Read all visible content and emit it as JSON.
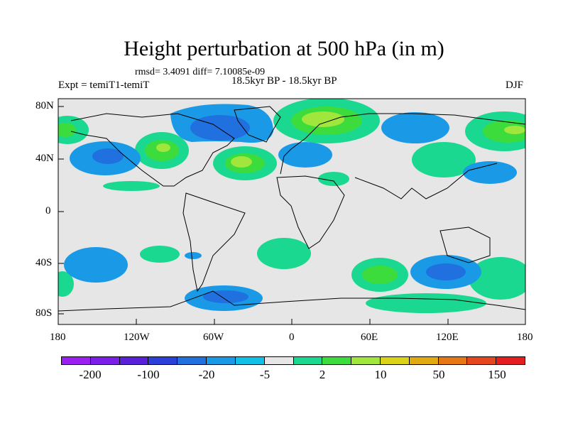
{
  "title": "Height perturbation at 500 hPa (in m)",
  "stats_line": "rmsd= 3.4091 diff= 7.10085e-09",
  "left_label": "Expt = temiT1-temiT",
  "center_label": "18.5kyr BP - 18.5kyr BP",
  "right_label": "DJF",
  "lat_ticks": [
    "80N",
    "40N",
    "0",
    "40S",
    "80S"
  ],
  "lon_ticks": [
    "180",
    "120W",
    "60W",
    "0",
    "60E",
    "120E",
    "180"
  ],
  "colorbar": {
    "colors": [
      "#9a1ff0",
      "#7a1ee8",
      "#5a1fd8",
      "#2a40d8",
      "#2070e0",
      "#1a9ae6",
      "#10c0e6",
      "#e6e6e6",
      "#1ad890",
      "#3cdc3c",
      "#a0e63c",
      "#dcd21a",
      "#e0aa10",
      "#e67814",
      "#e6461e",
      "#e61e1e"
    ],
    "labels": [
      "-200",
      "-100",
      "-20",
      "-5",
      "2",
      "10",
      "50",
      "150"
    ]
  }
}
